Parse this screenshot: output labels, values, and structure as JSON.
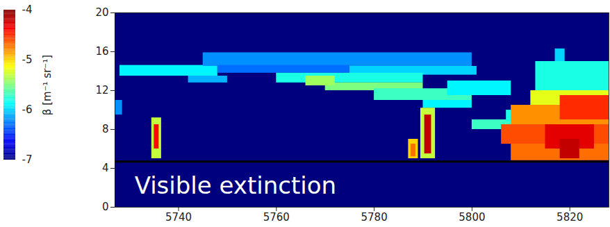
{
  "chart_data": {
    "type": "heatmap",
    "xlim": [
      5727,
      5828
    ],
    "ylim": [
      0,
      20
    ],
    "xticks": [
      5740,
      5760,
      5780,
      5800,
      5820
    ],
    "yticks": [
      0,
      4,
      8,
      12,
      16,
      20
    ],
    "colorbar": {
      "label": "β [m⁻¹ sr⁻¹]",
      "range": [
        -7,
        -4
      ],
      "ticks": [
        -4,
        -5,
        -6,
        -7
      ]
    },
    "hline": 4.7,
    "annotations": [
      {
        "text": "Visible extinction",
        "x": 5731,
        "y": 2.2
      }
    ],
    "cells": [
      {
        "x0": 5727,
        "x1": 5828,
        "y0": 0,
        "y1": 20,
        "value": -7
      },
      {
        "x0": 5728,
        "x1": 5748,
        "y0": 13.5,
        "y1": 14.6,
        "value": -5.9
      },
      {
        "x0": 5745,
        "x1": 5800,
        "y0": 14.5,
        "y1": 15.9,
        "value": -6.2
      },
      {
        "x0": 5748,
        "x1": 5775,
        "y0": 13.8,
        "y1": 14.6,
        "value": -6.3
      },
      {
        "x0": 5775,
        "x1": 5801,
        "y0": 13.6,
        "y1": 14.5,
        "value": -6.0
      },
      {
        "x0": 5742,
        "x1": 5750,
        "y0": 12.8,
        "y1": 13.5,
        "value": -6.1
      },
      {
        "x0": 5760,
        "x1": 5790,
        "y0": 12.8,
        "y1": 13.8,
        "value": -5.8
      },
      {
        "x0": 5770,
        "x1": 5790,
        "y0": 12.0,
        "y1": 12.8,
        "value": -5.5
      },
      {
        "x0": 5766,
        "x1": 5772,
        "y0": 12.5,
        "y1": 13.5,
        "value": -5.4
      },
      {
        "x0": 5780,
        "x1": 5800,
        "y0": 11.0,
        "y1": 12.2,
        "value": -5.7
      },
      {
        "x0": 5790,
        "x1": 5800,
        "y0": 10.2,
        "y1": 11.0,
        "value": -5.9
      },
      {
        "x0": 5795,
        "x1": 5808,
        "y0": 11.5,
        "y1": 13.0,
        "value": -5.9
      },
      {
        "x0": 5800,
        "x1": 5812,
        "y0": 8.0,
        "y1": 9.0,
        "value": -5.7
      },
      {
        "x0": 5807,
        "x1": 5812,
        "y0": 8.8,
        "y1": 10.0,
        "value": -5.8
      },
      {
        "x0": 5727,
        "x1": 5728.5,
        "y0": 9.5,
        "y1": 11.0,
        "value": -6.2
      },
      {
        "x0": 5813,
        "x1": 5828,
        "y0": 12.0,
        "y1": 15.0,
        "value": -5.8
      },
      {
        "x0": 5817,
        "x1": 5819,
        "y0": 15.0,
        "y1": 16.3,
        "value": -6.0
      },
      {
        "x0": 5812,
        "x1": 5828,
        "y0": 10.5,
        "y1": 12.0,
        "value": -5.2
      },
      {
        "x0": 5808,
        "x1": 5828,
        "y0": 8.5,
        "y1": 10.5,
        "value": -4.8
      },
      {
        "x0": 5806,
        "x1": 5828,
        "y0": 6.5,
        "y1": 8.5,
        "value": -4.6
      },
      {
        "x0": 5808,
        "x1": 5828,
        "y0": 4.8,
        "y1": 6.5,
        "value": -4.7
      },
      {
        "x0": 5815,
        "x1": 5825,
        "y0": 6.0,
        "y1": 8.5,
        "value": -4.3
      },
      {
        "x0": 5818,
        "x1": 5822,
        "y0": 5.0,
        "y1": 7.0,
        "value": -4.2
      },
      {
        "x0": 5818,
        "x1": 5828,
        "y0": 9.0,
        "y1": 11.5,
        "value": -4.5
      },
      {
        "x0": 5734.5,
        "x1": 5736.5,
        "y0": 5.0,
        "y1": 9.2,
        "value": -5.3
      },
      {
        "x0": 5735,
        "x1": 5736,
        "y0": 6.0,
        "y1": 8.5,
        "value": -4.4
      },
      {
        "x0": 5789.5,
        "x1": 5792.5,
        "y0": 5.0,
        "y1": 10.2,
        "value": -5.3
      },
      {
        "x0": 5790.3,
        "x1": 5791.7,
        "y0": 5.5,
        "y1": 9.5,
        "value": -4.2
      },
      {
        "x0": 5787,
        "x1": 5789,
        "y0": 5.0,
        "y1": 7.0,
        "value": -5.0
      },
      {
        "x0": 5787.5,
        "x1": 5788.5,
        "y0": 5.2,
        "y1": 6.5,
        "value": -4.7
      }
    ]
  }
}
